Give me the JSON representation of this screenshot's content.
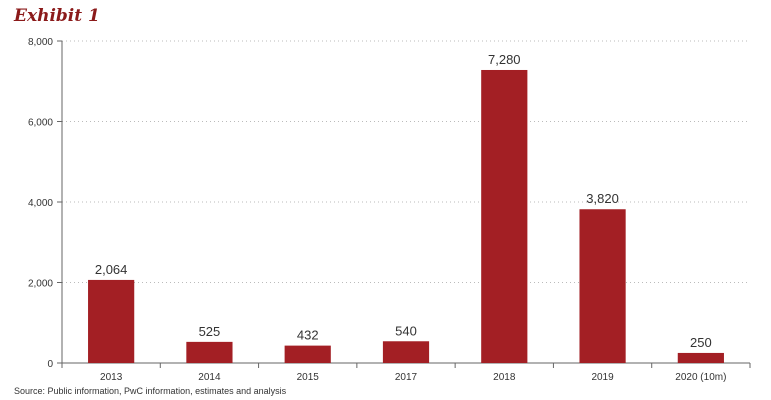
{
  "header": {
    "title": "Exhibit 1"
  },
  "footer": {
    "source": "Source: Public information, PwC information, estimates and analysis"
  },
  "colors": {
    "bar": "#a31f24",
    "axis": "#666666",
    "grid": "#bbbbbb",
    "label": "#333333"
  },
  "chart_data": {
    "type": "bar",
    "title": "",
    "xlabel": "",
    "ylabel": "",
    "categories": [
      "2013",
      "2014",
      "2015",
      "2017",
      "2018",
      "2019",
      "2020 (10m)"
    ],
    "values": [
      2064,
      525,
      432,
      540,
      7280,
      3820,
      250
    ],
    "value_labels": [
      "2,064",
      "525",
      "432",
      "540",
      "7,280",
      "3,820",
      "250"
    ],
    "ylim": [
      0,
      8000
    ],
    "yticks": [
      0,
      2000,
      4000,
      6000,
      8000
    ],
    "ytick_labels": [
      "0",
      "2,000",
      "4,000",
      "6,000",
      "8,000"
    ],
    "grid": "horizontal dotted",
    "legend": "none"
  }
}
